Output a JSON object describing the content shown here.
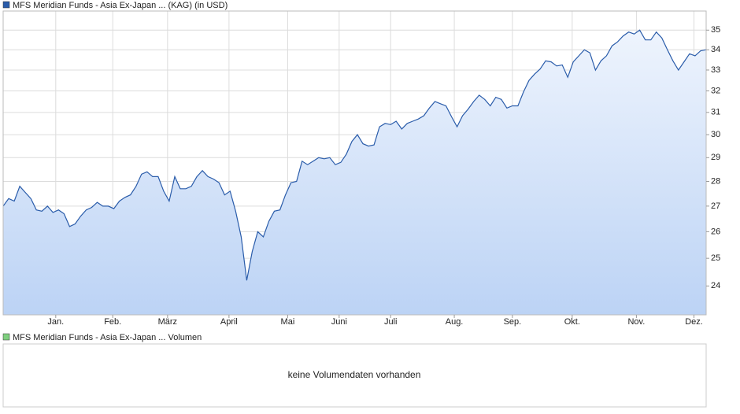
{
  "chart_data": {
    "type": "line",
    "legend": "MFS Meridian Funds - Asia Ex-Japan ... (KAG) (in USD)",
    "series": [
      {
        "name": "MFS Meridian Funds - Asia Ex-Japan ... (KAG) (in USD)",
        "color": "#2a5caa",
        "values": [
          27.0,
          27.3,
          27.2,
          27.8,
          27.55,
          27.3,
          26.85,
          26.8,
          27.0,
          26.75,
          26.85,
          26.7,
          26.2,
          26.3,
          26.6,
          26.85,
          26.95,
          27.15,
          27.0,
          27.0,
          26.9,
          27.2,
          27.35,
          27.45,
          27.8,
          28.3,
          28.4,
          28.2,
          28.2,
          27.6,
          27.2,
          28.2,
          27.7,
          27.7,
          27.8,
          28.2,
          28.45,
          28.2,
          28.1,
          27.95,
          27.45,
          27.6,
          26.8,
          25.8,
          24.2,
          25.25,
          26.0,
          25.8,
          26.4,
          26.8,
          26.85,
          27.45,
          27.95,
          28.0,
          28.85,
          28.7,
          28.85,
          29.0,
          28.95,
          29.0,
          28.7,
          28.8,
          29.15,
          29.7,
          30.0,
          29.6,
          29.5,
          29.55,
          30.35,
          30.5,
          30.45,
          30.6,
          30.25,
          30.5,
          30.6,
          30.7,
          30.85,
          31.2,
          31.5,
          31.4,
          31.3,
          30.8,
          30.35,
          30.85,
          31.15,
          31.5,
          31.8,
          31.6,
          31.3,
          31.7,
          31.6,
          31.2,
          31.3,
          31.3,
          31.95,
          32.5,
          32.8,
          33.05,
          33.45,
          33.4,
          33.2,
          33.25,
          32.65,
          33.4,
          33.7,
          34.0,
          33.85,
          33.0,
          33.45,
          33.7,
          34.2,
          34.4,
          34.7,
          34.9,
          34.8,
          35.0,
          34.5,
          34.5,
          34.9,
          34.6,
          34.0,
          33.45,
          33.0,
          33.4,
          33.8,
          33.7,
          33.95,
          34.0
        ]
      }
    ],
    "fill_top": "#eef4fd",
    "fill_bottom": "#bcd3f5",
    "log_y": true,
    "ylim": [
      23,
      36
    ],
    "yticks": [
      24,
      25,
      26,
      27,
      28,
      29,
      30,
      31,
      32,
      33,
      34,
      35
    ],
    "xlim": [
      0,
      127
    ],
    "xticks": [
      {
        "value": 9.5,
        "label": "Jan."
      },
      {
        "value": 19.8,
        "label": "Feb."
      },
      {
        "value": 29.7,
        "label": "März"
      },
      {
        "value": 40.8,
        "label": "April"
      },
      {
        "value": 51.4,
        "label": "Mai"
      },
      {
        "value": 60.7,
        "label": "Juni"
      },
      {
        "value": 70,
        "label": "Juli"
      },
      {
        "value": 81.5,
        "label": "Aug."
      },
      {
        "value": 92,
        "label": "Sep."
      },
      {
        "value": 102.8,
        "label": "Okt."
      },
      {
        "value": 114.4,
        "label": "Nov."
      },
      {
        "value": 124.8,
        "label": "Dez."
      }
    ],
    "grid": true
  },
  "volume": {
    "legend": "MFS Meridian Funds - Asia Ex-Japan ... Volumen",
    "color": "#7fcf7f",
    "message": "keine Volumendaten vorhanden"
  }
}
